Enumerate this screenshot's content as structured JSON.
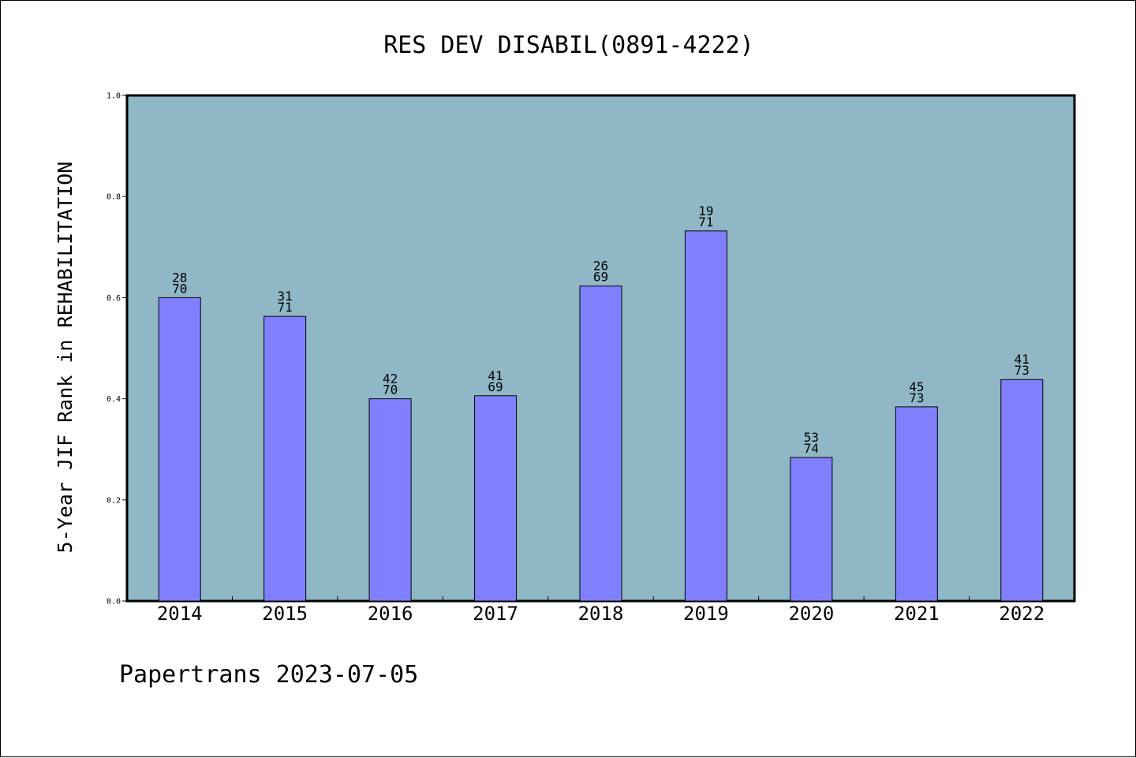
{
  "colors": {
    "plot_background": "#8fb7c6",
    "bar_fill": "#8080ff",
    "bar_stroke": "#000000",
    "axis": "#000000",
    "page_background": "#ffffff"
  },
  "footer": "Papertrans 2023-07-05",
  "chart_data": {
    "type": "bar",
    "title": "RES DEV DISABIL(0891-4222)",
    "xlabel": "",
    "ylabel": "5-Year JIF Rank in REHABILITATION",
    "categories": [
      "2014",
      "2015",
      "2016",
      "2017",
      "2018",
      "2019",
      "2020",
      "2021",
      "2022"
    ],
    "values": [
      0.6,
      0.563,
      0.4,
      0.406,
      0.623,
      0.732,
      0.284,
      0.384,
      0.438
    ],
    "rank": [
      "28",
      "31",
      "42",
      "41",
      "26",
      "19",
      "53",
      "45",
      "41"
    ],
    "total": [
      "70",
      "71",
      "70",
      "69",
      "69",
      "71",
      "74",
      "73",
      "73"
    ],
    "ylim": [
      0,
      1.0
    ],
    "yticks": [
      "0.0",
      "0.2",
      "0.4",
      "0.6",
      "0.8",
      "1.0"
    ],
    "grid": false,
    "legend": "none"
  }
}
